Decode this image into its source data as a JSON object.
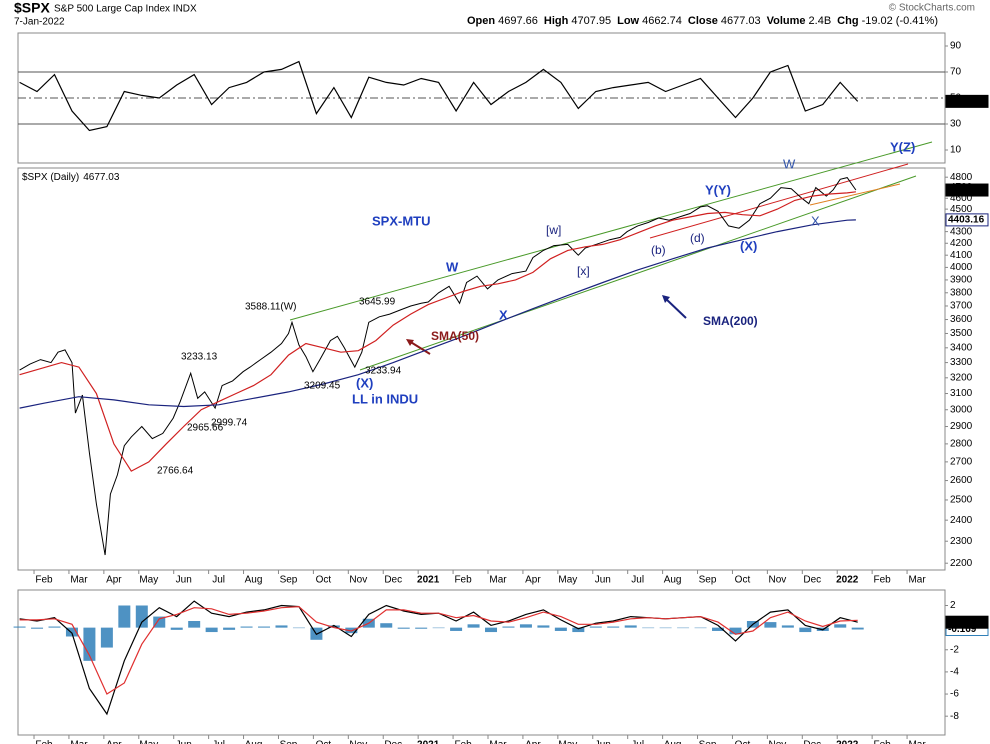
{
  "header": {
    "symbol": "$SPX",
    "name": "S&P 500 Large Cap Index INDX",
    "date": "7-Jan-2022",
    "quote": [
      {
        "label": "Open",
        "value": "4697.66"
      },
      {
        "label": "High",
        "value": "4707.95"
      },
      {
        "label": "Low",
        "value": "4662.74"
      },
      {
        "label": "Close",
        "value": "4677.03"
      },
      {
        "label": "Volume",
        "value": "2.4B"
      },
      {
        "label": "Chg",
        "value": "-19.02 (-0.41%)"
      }
    ],
    "credit": "© StockCharts.com"
  },
  "chart_data": [
    {
      "type": "line",
      "xlim": [
        0.255,
        26.8
      ],
      "ylim": [
        0,
        100
      ],
      "yticks": [
        90,
        70,
        50,
        30,
        10
      ],
      "levels": [
        {
          "value": 70,
          "style": "solid"
        },
        {
          "value": 50,
          "style": "dashdot"
        },
        {
          "value": 30,
          "style": "solid"
        }
      ],
      "x": [
        0.3,
        0.8,
        1.3,
        1.8,
        2.3,
        2.8,
        3.3,
        3.8,
        4.3,
        4.8,
        5.3,
        5.8,
        6.3,
        6.8,
        7.3,
        7.8,
        8.3,
        8.8,
        9.3,
        9.8,
        10.3,
        10.8,
        11.3,
        11.8,
        12.3,
        12.8,
        13.3,
        13.8,
        14.3,
        14.8,
        15.3,
        15.8,
        16.3,
        16.8,
        17.3,
        17.8,
        18.3,
        18.8,
        19.3,
        19.8,
        20.3,
        20.8,
        21.3,
        21.8,
        22.3,
        22.8,
        23.3,
        23.8,
        24.3
      ],
      "series": [
        {
          "color": "#000000",
          "last_value_label": "47.41",
          "values": [
            62,
            55,
            68,
            40,
            25,
            28,
            55,
            52,
            50,
            60,
            68,
            45,
            58,
            62,
            70,
            72,
            78,
            38,
            58,
            35,
            66,
            62,
            60,
            65,
            62,
            40,
            62,
            45,
            55,
            62,
            72,
            62,
            42,
            55,
            58,
            60,
            62,
            55,
            60,
            65,
            50,
            35,
            50,
            70,
            75,
            40,
            45,
            62,
            47.41
          ]
        }
      ]
    },
    {
      "type": "line",
      "log": true,
      "xlim": [
        0.255,
        26.8
      ],
      "ylim": [
        2170,
        4890
      ],
      "yticks": [
        2200,
        2300,
        2400,
        2500,
        2600,
        2700,
        2800,
        2900,
        3000,
        3100,
        3200,
        3300,
        3400,
        3500,
        3600,
        3700,
        3800,
        3900,
        4000,
        4100,
        4200,
        4300,
        4400,
        4500,
        4600,
        4700,
        4800
      ],
      "xticks": [
        {
          "value": 1,
          "label": "Feb"
        },
        {
          "value": 2,
          "label": "Mar"
        },
        {
          "value": 3,
          "label": "Apr"
        },
        {
          "value": 4,
          "label": "May"
        },
        {
          "value": 5,
          "label": "Jun"
        },
        {
          "value": 6,
          "label": "Jul"
        },
        {
          "value": 7,
          "label": "Aug"
        },
        {
          "value": 8,
          "label": "Sep"
        },
        {
          "value": 9,
          "label": "Oct"
        },
        {
          "value": 10,
          "label": "Nov"
        },
        {
          "value": 11,
          "label": "Dec"
        },
        {
          "value": 12,
          "label": "2021"
        },
        {
          "value": 13,
          "label": "Feb"
        },
        {
          "value": 14,
          "label": "Mar"
        },
        {
          "value": 15,
          "label": "Apr"
        },
        {
          "value": 16,
          "label": "May"
        },
        {
          "value": 17,
          "label": "Jun"
        },
        {
          "value": 18,
          "label": "Jul"
        },
        {
          "value": 19,
          "label": "Aug"
        },
        {
          "value": 20,
          "label": "Sep"
        },
        {
          "value": 21,
          "label": "Oct"
        },
        {
          "value": 22,
          "label": "Nov"
        },
        {
          "value": 23,
          "label": "Dec"
        },
        {
          "value": 24,
          "label": "2022"
        },
        {
          "value": 25,
          "label": "Feb"
        },
        {
          "value": 26,
          "label": "Mar"
        }
      ],
      "series": [
        {
          "name": "$SPX (Daily)",
          "color": "#000000",
          "last_value_label": "4677.03",
          "x": [
            0.3,
            0.6,
            0.9,
            1.2,
            1.4,
            1.6,
            1.8,
            1.9,
            2.1,
            2.3,
            2.5,
            2.75,
            2.9,
            3.1,
            3.3,
            3.5,
            3.8,
            4.1,
            4.4,
            4.7,
            4.9,
            5.2,
            5.4,
            5.6,
            5.9,
            6.1,
            6.4,
            6.7,
            6.9,
            7.2,
            7.5,
            7.8,
            8.0,
            8.1,
            8.3,
            8.5,
            8.7,
            8.9,
            9.2,
            9.4,
            9.6,
            9.9,
            10.1,
            10.3,
            10.6,
            10.9,
            11.2,
            11.5,
            11.8,
            12.0,
            12.3,
            12.6,
            12.9,
            13.1,
            13.4,
            13.7,
            14.0,
            14.4,
            14.8,
            15.0,
            15.3,
            15.6,
            16.0,
            16.3,
            16.5,
            16.9,
            17.2,
            17.5,
            17.7,
            18.0,
            18.3,
            18.6,
            18.9,
            19.2,
            19.5,
            19.8,
            20.0,
            20.3,
            20.6,
            20.9,
            21.2,
            21.5,
            21.8,
            22.1,
            22.4,
            22.7,
            22.9,
            23.1,
            23.4,
            23.6,
            23.8,
            24.0,
            24.2,
            24.25
          ],
          "values": [
            3250,
            3290,
            3320,
            3300,
            3370,
            3386,
            3300,
            2980,
            3090,
            2750,
            2480,
            2237,
            2530,
            2630,
            2790,
            2840,
            2900,
            2830,
            2860,
            2950,
            3050,
            3230,
            3070,
            3110,
            3010,
            3150,
            3180,
            3240,
            3270,
            3320,
            3370,
            3430,
            3500,
            3580,
            3420,
            3340,
            3240,
            3320,
            3450,
            3480,
            3400,
            3270,
            3370,
            3580,
            3620,
            3640,
            3670,
            3700,
            3720,
            3730,
            3800,
            3850,
            3720,
            3880,
            3930,
            3830,
            3900,
            3950,
            3970,
            4080,
            4140,
            4180,
            4190,
            4100,
            4160,
            4200,
            4230,
            4250,
            4300,
            4350,
            4380,
            4420,
            4400,
            4430,
            4460,
            4520,
            4530,
            4480,
            4350,
            4330,
            4400,
            4550,
            4600,
            4700,
            4690,
            4600,
            4550,
            4700,
            4620,
            4680,
            4780,
            4796,
            4700,
            4677.03
          ]
        },
        {
          "name": "SMA(50)",
          "color": "#d02020",
          "x": [
            0.3,
            1.5,
            2.0,
            2.5,
            3.0,
            3.5,
            4.0,
            4.5,
            5.0,
            5.5,
            6.0,
            6.5,
            7.0,
            7.5,
            8.0,
            8.5,
            9.0,
            9.5,
            10.0,
            10.5,
            11.0,
            11.5,
            12.0,
            12.5,
            13.0,
            13.5,
            14.0,
            14.5,
            15.0,
            15.5,
            16.0,
            16.5,
            17.0,
            17.5,
            18.0,
            18.5,
            19.0,
            19.5,
            20.0,
            20.5,
            21.0,
            21.5,
            22.0,
            22.5,
            23.0,
            23.5,
            24.0,
            24.25
          ],
          "values": [
            3220,
            3300,
            3270,
            3100,
            2800,
            2650,
            2700,
            2800,
            2900,
            3000,
            3050,
            3100,
            3150,
            3220,
            3350,
            3430,
            3400,
            3370,
            3380,
            3450,
            3560,
            3640,
            3710,
            3760,
            3810,
            3850,
            3870,
            3900,
            3960,
            4070,
            4140,
            4170,
            4190,
            4230,
            4290,
            4350,
            4400,
            4430,
            4460,
            4470,
            4450,
            4440,
            4500,
            4580,
            4620,
            4640,
            4650,
            4660
          ]
        },
        {
          "name": "SMA(200)",
          "color": "#1a237e",
          "last_value_label": "4403.16",
          "x": [
            0.3,
            1,
            2,
            3,
            4,
            5,
            6,
            7,
            8,
            9,
            10,
            11,
            12,
            13,
            14,
            15,
            16,
            17,
            18,
            19,
            20,
            21,
            22,
            23,
            24,
            24.25
          ],
          "values": [
            3010,
            3040,
            3080,
            3060,
            3030,
            3020,
            3030,
            3070,
            3110,
            3160,
            3220,
            3300,
            3390,
            3480,
            3580,
            3680,
            3780,
            3880,
            3980,
            4070,
            4160,
            4230,
            4300,
            4360,
            4400,
            4403.16
          ]
        }
      ],
      "annotations": [
        "SPX-MTU",
        "W",
        "X",
        "[w]",
        "[x]",
        "(b)",
        "(d)",
        "Y(Y)",
        "(X)",
        "W",
        "X",
        "Y(Z)",
        "3588.11(W)",
        "3645.99",
        "3233.13",
        "3209.45",
        "3233.94",
        "2999.74",
        "2965.66",
        "2766.64",
        "(X)",
        "LL in INDU"
      ]
    },
    {
      "type": "line",
      "xlim": [
        0.255,
        26.8
      ],
      "ylim": [
        -9.7,
        3.4
      ],
      "yticks": [
        2,
        0,
        -2,
        -4,
        -6,
        -8
      ],
      "xticks": [
        {
          "value": 1,
          "label": "Feb"
        },
        {
          "value": 2,
          "label": "Mar"
        },
        {
          "value": 3,
          "label": "Apr"
        },
        {
          "value": 4,
          "label": "May"
        },
        {
          "value": 5,
          "label": "Jun"
        },
        {
          "value": 6,
          "label": "Jul"
        },
        {
          "value": 7,
          "label": "Aug"
        },
        {
          "value": 8,
          "label": "Sep"
        },
        {
          "value": 9,
          "label": "Oct"
        },
        {
          "value": 10,
          "label": "Nov"
        },
        {
          "value": 11,
          "label": "Dec"
        },
        {
          "value": 12,
          "label": "2021"
        },
        {
          "value": 13,
          "label": "Feb"
        },
        {
          "value": 14,
          "label": "Mar"
        },
        {
          "value": 15,
          "label": "Apr"
        },
        {
          "value": 16,
          "label": "May"
        },
        {
          "value": 17,
          "label": "Jun"
        },
        {
          "value": 18,
          "label": "Jul"
        },
        {
          "value": 19,
          "label": "Aug"
        },
        {
          "value": 20,
          "label": "Sep"
        },
        {
          "value": 21,
          "label": "Oct"
        },
        {
          "value": 22,
          "label": "Nov"
        },
        {
          "value": 23,
          "label": "Dec"
        },
        {
          "value": 24,
          "label": "2022"
        },
        {
          "value": 25,
          "label": "Feb"
        },
        {
          "value": 26,
          "label": "Mar"
        }
      ],
      "x": [
        0.3,
        0.8,
        1.3,
        1.8,
        2.3,
        2.8,
        3.3,
        3.8,
        4.3,
        4.8,
        5.3,
        5.8,
        6.3,
        6.8,
        7.3,
        7.8,
        8.3,
        8.8,
        9.3,
        9.8,
        10.3,
        10.8,
        11.3,
        11.8,
        12.3,
        12.8,
        13.3,
        13.8,
        14.3,
        14.8,
        15.3,
        15.8,
        16.3,
        16.8,
        17.3,
        17.8,
        18.3,
        18.8,
        19.3,
        19.8,
        20.3,
        20.8,
        21.3,
        21.8,
        22.3,
        22.8,
        23.3,
        23.8,
        24.3
      ],
      "series": [
        {
          "kind": "bar",
          "color": "#2f7fb8",
          "last_value_label": "-0.169",
          "values": [
            0.1,
            -0.1,
            0.1,
            -0.8,
            -3.0,
            -1.8,
            2.0,
            2.0,
            1.0,
            -0.2,
            0.6,
            -0.4,
            -0.2,
            0.1,
            0.1,
            0.2,
            0.0,
            -1.1,
            0.2,
            -0.5,
            0.8,
            0.4,
            -0.1,
            -0.1,
            0.0,
            -0.3,
            0.3,
            -0.4,
            0.1,
            0.3,
            0.2,
            -0.3,
            -0.4,
            0.1,
            0.1,
            0.2,
            0.0,
            0.0,
            0.0,
            0.0,
            -0.3,
            -0.6,
            0.6,
            0.5,
            0.2,
            -0.4,
            -0.3,
            0.3,
            -0.169
          ]
        },
        {
          "color": "#000000",
          "last_value_label": "0.490",
          "values": [
            0.8,
            0.6,
            0.9,
            -0.5,
            -5.5,
            -7.8,
            -3.0,
            0.5,
            1.8,
            1.0,
            2.4,
            1.3,
            1.0,
            1.4,
            1.6,
            2.0,
            1.9,
            -0.6,
            0.2,
            -0.8,
            1.2,
            2.0,
            1.5,
            1.2,
            1.3,
            0.6,
            1.4,
            0.2,
            0.6,
            1.2,
            1.6,
            0.7,
            -0.1,
            0.4,
            0.6,
            1.0,
            0.9,
            0.8,
            0.9,
            1.0,
            0.2,
            -1.2,
            0.3,
            1.4,
            1.6,
            0.2,
            -0.2,
            0.9,
            0.49
          ]
        },
        {
          "color": "#e03030",
          "values": [
            0.7,
            0.7,
            0.8,
            0.3,
            -2.5,
            -6.0,
            -5.0,
            -1.5,
            0.8,
            1.2,
            1.8,
            1.7,
            1.2,
            1.3,
            1.5,
            1.8,
            1.9,
            0.5,
            0.0,
            -0.3,
            0.4,
            1.6,
            1.6,
            1.3,
            1.3,
            0.9,
            1.1,
            0.6,
            0.5,
            0.9,
            1.4,
            1.0,
            0.3,
            0.3,
            0.5,
            0.8,
            0.9,
            0.8,
            0.9,
            1.0,
            0.5,
            -0.6,
            -0.3,
            0.9,
            1.4,
            0.6,
            0.1,
            0.6,
            0.659
          ]
        }
      ]
    }
  ]
}
